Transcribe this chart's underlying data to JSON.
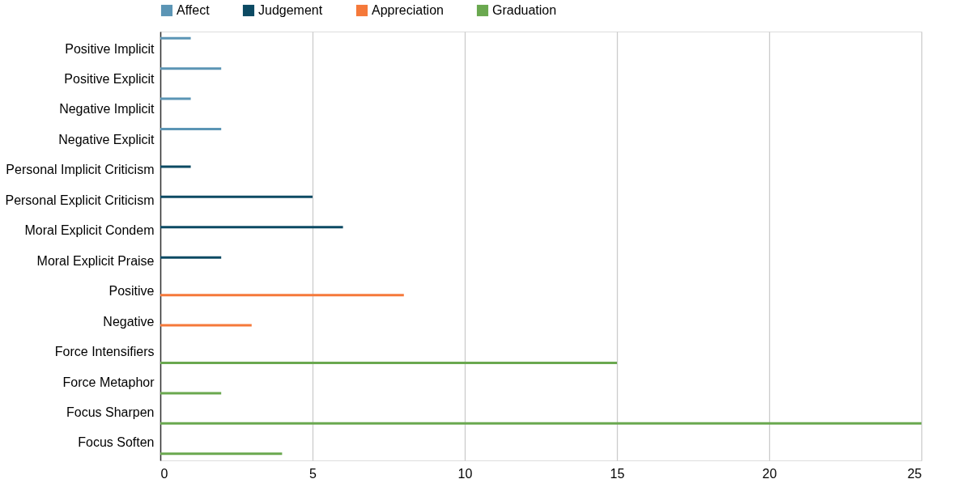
{
  "chart_data": {
    "type": "bar",
    "orientation": "horizontal",
    "categories": [
      "Positive Implicit",
      "Positive Explicit",
      "Negative Implicit",
      "Negative Explicit",
      "Personal Implicit Criticism",
      "Personal Explicit Criticism",
      "Moral Explicit Condem",
      "Moral Explicit Praise",
      "Positive",
      "Negative",
      "Force Intensifiers",
      "Force Metaphor",
      "Focus Sharpen",
      "Focus Soften"
    ],
    "series": [
      {
        "name": "Affect",
        "color": "#5b95b5",
        "values": [
          1,
          2,
          1,
          2,
          null,
          null,
          null,
          null,
          null,
          null,
          null,
          null,
          null,
          null
        ]
      },
      {
        "name": "Judgement",
        "color": "#0c4a63",
        "values": [
          null,
          null,
          null,
          null,
          1,
          5,
          6,
          2,
          null,
          null,
          null,
          null,
          null,
          null
        ]
      },
      {
        "name": "Appreciation",
        "color": "#f5793a",
        "values": [
          null,
          null,
          null,
          null,
          null,
          null,
          null,
          null,
          8,
          3,
          null,
          null,
          null,
          null
        ]
      },
      {
        "name": "Graduation",
        "color": "#6aa84f",
        "values": [
          null,
          null,
          null,
          null,
          null,
          null,
          null,
          null,
          null,
          null,
          15,
          2,
          25,
          4
        ]
      }
    ],
    "xlim": [
      0,
      25
    ],
    "xticks": [
      0,
      5,
      10,
      15,
      20,
      25
    ],
    "grid": "x",
    "legend": "top"
  }
}
